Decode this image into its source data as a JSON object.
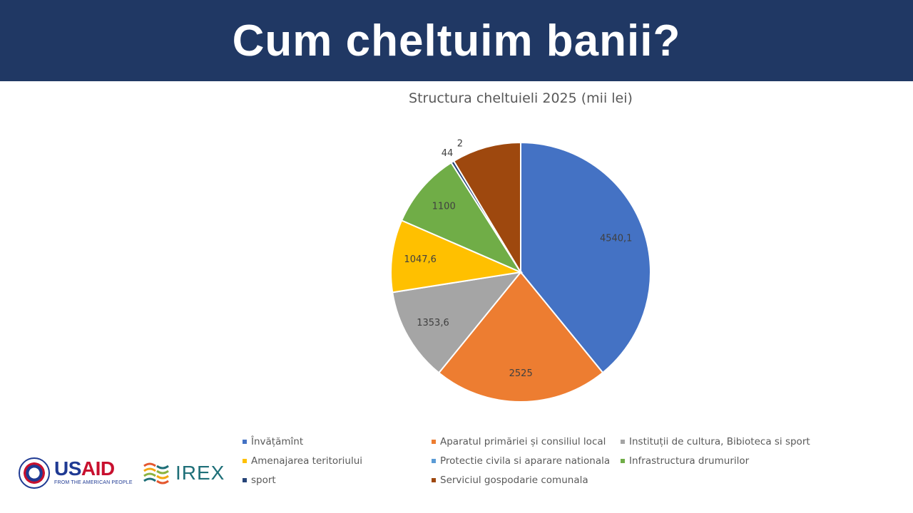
{
  "header": {
    "title": "Cum cheltuim banii?"
  },
  "logos": {
    "usaid_us": "US",
    "usaid_aid": "AID",
    "usaid_tagline": "FROM THE AMERICAN PEOPLE",
    "irex": "IREX"
  },
  "chart_data": {
    "type": "pie",
    "title": "Structura cheltuieli 2025 (mii lei)",
    "slices": [
      {
        "label": "Învățămînt",
        "value": 4540.1,
        "display": "4540,1",
        "color": "#4472C4"
      },
      {
        "label": "Aparatul primăriei  și consiliul local",
        "value": 2525,
        "display": "2525",
        "color": "#ED7D31"
      },
      {
        "label": "Instituții de cultura, Bibioteca si sport",
        "value": 1353.6,
        "display": "1353,6",
        "color": "#A5A5A5"
      },
      {
        "label": "Amenajarea teritoriului",
        "value": 1047.6,
        "display": "1047,6",
        "color": "#FFC000"
      },
      {
        "label": "Protectie civila si aparare nationala",
        "value": 0,
        "display": "",
        "color": "#5B9BD5"
      },
      {
        "label": "Infrastructura drumurilor",
        "value": 1100,
        "display": "1100",
        "color": "#70AD47"
      },
      {
        "label": "sport",
        "value": 44,
        "display": "44",
        "color": "#264478"
      },
      {
        "label": "Serviciul gospodarie comunala",
        "value": 1000,
        "display": "",
        "color": "#9E480E"
      }
    ],
    "extra_labels": [
      "2"
    ],
    "legend_position": "bottom"
  }
}
